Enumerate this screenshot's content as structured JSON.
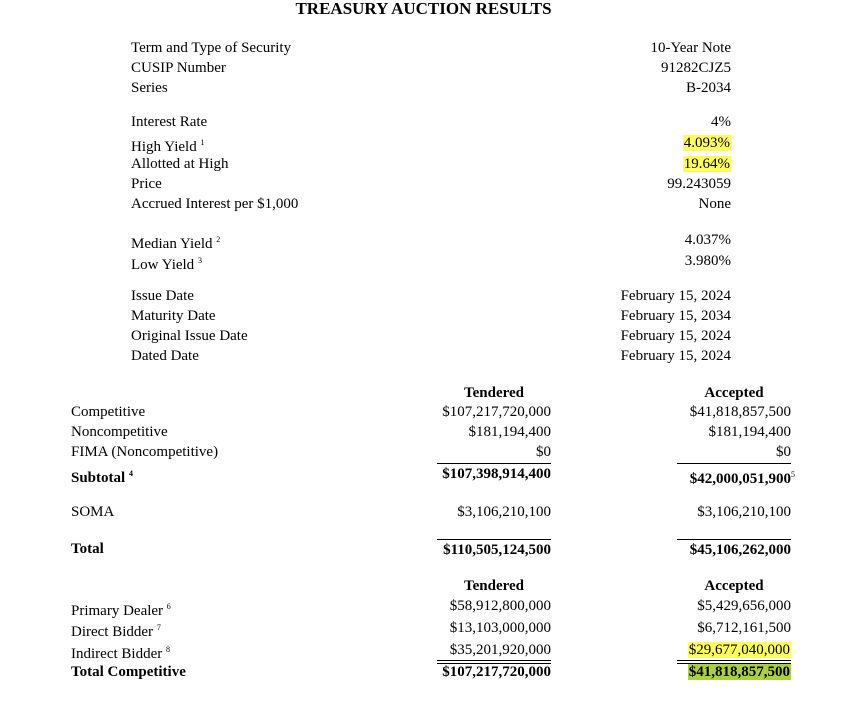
{
  "title": "TREASURY AUCTION RESULTS",
  "security": [
    {
      "label": "Term and Type of Security",
      "value": "10-Year Note"
    },
    {
      "label": "CUSIP Number",
      "value": "91282CJZ5"
    },
    {
      "label": "Series",
      "value": "B-2034"
    },
    {
      "label": "Interest Rate",
      "value": "4%"
    },
    {
      "label": "High Yield",
      "note": "1",
      "value": "4.093%"
    },
    {
      "label": "Allotted at High",
      "value": "19.64%"
    },
    {
      "label": "Price",
      "value": "99.243059"
    },
    {
      "label": "Accrued Interest per $1,000",
      "value": "None"
    },
    {
      "label": "Median Yield",
      "note": "2",
      "value": "4.037%"
    },
    {
      "label": "Low Yield",
      "note": "3",
      "value": "3.980%"
    },
    {
      "label": "Issue Date",
      "value": "February 15, 2024"
    },
    {
      "label": "Maturity Date",
      "value": "February 15, 2034"
    },
    {
      "label": "Original Issue Date",
      "value": "February 15, 2024"
    },
    {
      "label": "Dated Date",
      "value": "February 15, 2024"
    }
  ],
  "headers": {
    "tendered": "Tendered",
    "accepted": "Accepted"
  },
  "bids": [
    {
      "label": "Competitive",
      "tendered": "$107,217,720,000",
      "accepted": "$41,818,857,500"
    },
    {
      "label": "Noncompetitive",
      "tendered": "$181,194,400",
      "accepted": "$181,194,400"
    },
    {
      "label": "FIMA (Noncompetitive)",
      "tendered": "$0",
      "accepted": "$0"
    },
    {
      "label": "Subtotal",
      "note": "4",
      "tendered": "$107,398,914,400",
      "accepted": "$42,000,051,900",
      "accepted_note": "5"
    },
    {
      "label": "SOMA",
      "tendered": "$3,106,210,100",
      "accepted": "$3,106,210,100"
    },
    {
      "label": "Total",
      "tendered": "$110,505,124,500",
      "accepted": "$45,106,262,000"
    }
  ],
  "bidders": [
    {
      "label": "Primary Dealer",
      "note": "6",
      "tendered": "$58,912,800,000",
      "accepted": "$5,429,656,000"
    },
    {
      "label": "Direct Bidder",
      "note": "7",
      "tendered": "$13,103,000,000",
      "accepted": "$6,712,161,500"
    },
    {
      "label": "Indirect Bidder",
      "note": "8",
      "tendered": "$35,201,920,000",
      "accepted": "$29,677,040,000"
    },
    {
      "label": "Total Competitive",
      "tendered": "$107,217,720,000",
      "accepted": "$41,818,857,500"
    }
  ],
  "colors": {
    "highlight_yellow": "#ffff5c",
    "highlight_green": "#a9d13f"
  }
}
